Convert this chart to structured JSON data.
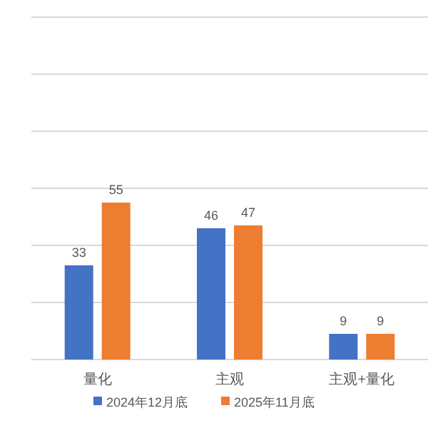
{
  "chart_data": {
    "type": "bar",
    "categories": [
      "量化",
      "主观",
      "主观+量化"
    ],
    "series": [
      {
        "name": "2024年12月底",
        "color": "#4472c4",
        "values": [
          33,
          46,
          9
        ]
      },
      {
        "name": "2025年11月底",
        "color": "#ed7d31",
        "values": [
          55,
          47,
          9
        ]
      }
    ],
    "ylim": [
      0,
      120
    ],
    "yticks": [
      {
        "value": 0,
        "label": null
      },
      {
        "value": 20,
        "label": null
      },
      {
        "value": 40,
        "label": null
      },
      {
        "value": 60,
        "label": null
      },
      {
        "value": 80,
        "label": null
      },
      {
        "value": 100,
        "label": null
      },
      {
        "value": 120,
        "label": null
      }
    ],
    "grid": "y",
    "tick_labels": "x",
    "data_labels": true,
    "legend": "bottom"
  }
}
